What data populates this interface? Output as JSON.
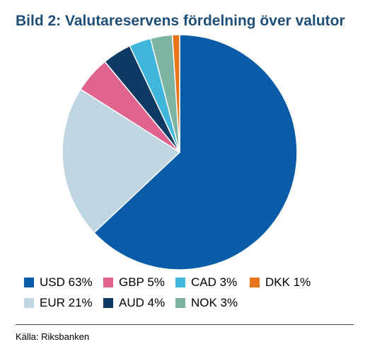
{
  "chart_data": {
    "type": "pie",
    "title": "Bild 2: Valutareservens fördelning över valutor",
    "categories": [
      "USD",
      "EUR",
      "GBP",
      "AUD",
      "CAD",
      "NOK",
      "DKK"
    ],
    "values": [
      63,
      21,
      5,
      4,
      3,
      3,
      1
    ],
    "colors": [
      "#0a5ca8",
      "#bfd5e2",
      "#e0628f",
      "#0e3a63",
      "#41b6dd",
      "#7db3a2",
      "#e8731a"
    ],
    "legend": {
      "placement": "bottom",
      "items": [
        {
          "label": "USD 63%",
          "color": "#0a5ca8"
        },
        {
          "label": "GBP 5%",
          "color": "#e0628f"
        },
        {
          "label": "CAD 3%",
          "color": "#41b6dd"
        },
        {
          "label": "DKK 1%",
          "color": "#e8731a"
        },
        {
          "label": "EUR 21%",
          "color": "#bfd5e2"
        },
        {
          "label": "AUD 4%",
          "color": "#0e3a63"
        },
        {
          "label": "NOK 3%",
          "color": "#7db3a2"
        }
      ]
    },
    "source": "Källa: Riksbanken"
  }
}
